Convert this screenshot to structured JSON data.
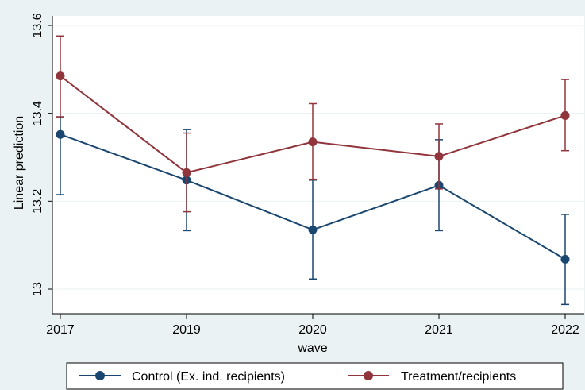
{
  "chart_data": {
    "type": "line",
    "x": [
      "2017",
      "2019",
      "2020",
      "2021",
      "2022"
    ],
    "xlabel": "wave",
    "ylabel": "Linear prediction",
    "ylim": [
      12.95,
      13.6
    ],
    "yticks": [
      "13",
      "13.2",
      "13.4",
      "13.6"
    ],
    "grid": true,
    "legend_position": "bottom",
    "series": [
      {
        "name": "Control (Ex. ind. recipients)",
        "color": "#1a476f",
        "values": [
          13.352,
          13.248,
          13.135,
          13.236,
          13.068
        ],
        "ci_low": [
          13.215,
          13.133,
          13.023,
          13.133,
          12.965
        ],
        "ci_high": [
          13.392,
          13.363,
          13.248,
          13.34,
          13.17
        ]
      },
      {
        "name": "Treatment/recipients",
        "color": "#90353b",
        "values": [
          13.485,
          13.265,
          13.335,
          13.302,
          13.395
        ],
        "ci_low": [
          13.392,
          13.176,
          13.25,
          13.228,
          13.315
        ],
        "ci_high": [
          13.576,
          13.355,
          13.422,
          13.376,
          13.477
        ]
      }
    ]
  }
}
